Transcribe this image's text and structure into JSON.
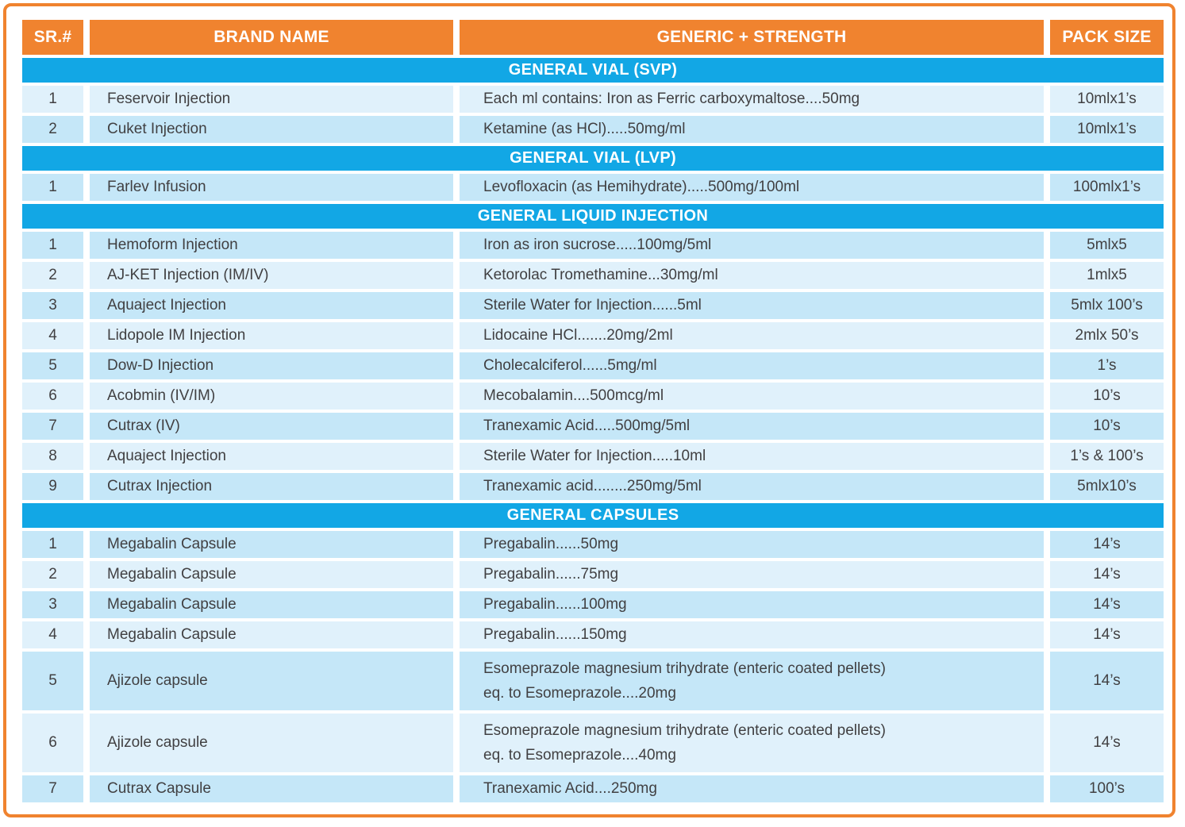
{
  "colors": {
    "accent_orange": "#F0832F",
    "accent_blue": "#12A7E5",
    "row_light": "#E0F1FB",
    "row_dark": "#C5E7F8",
    "cell_text": "#414042",
    "header_text": "#FFFFFF"
  },
  "table": {
    "columns": [
      {
        "label": "SR.#"
      },
      {
        "label": "BRAND NAME"
      },
      {
        "label": "GENERIC + STRENGTH"
      },
      {
        "label": "PACK SIZE"
      }
    ],
    "sections": [
      {
        "title": "GENERAL VIAL (SVP)",
        "rows": [
          {
            "sr": "1",
            "brand": "Feservoir Injection",
            "generic": "Each ml contains: Iron as Ferric carboxymaltose....50mg",
            "pack": "10mlx1’s"
          },
          {
            "sr": "2",
            "brand": "Cuket Injection",
            "generic": "Ketamine (as HCl).....50mg/ml",
            "pack": "10mlx1’s"
          }
        ]
      },
      {
        "title": "GENERAL VIAL (LVP)",
        "rows": [
          {
            "sr": "1",
            "brand": "Farlev Infusion",
            "generic": "Levofloxacin (as Hemihydrate).....500mg/100ml",
            "pack": "100mlx1’s"
          }
        ]
      },
      {
        "title": "GENERAL LIQUID INJECTION",
        "rows": [
          {
            "sr": "1",
            "brand": "Hemoform Injection",
            "generic": "Iron as iron sucrose.....100mg/5ml",
            "pack": "5mlx5"
          },
          {
            "sr": "2",
            "brand": "AJ-KET Injection (IM/IV)",
            "generic": "Ketorolac Tromethamine...30mg/ml",
            "pack": "1mlx5"
          },
          {
            "sr": "3",
            "brand": "Aquaject Injection",
            "generic": "Sterile Water for Injection......5ml",
            "pack": "5mlx 100’s"
          },
          {
            "sr": "4",
            "brand": "Lidopole IM Injection",
            "generic": "Lidocaine HCl.......20mg/2ml",
            "pack": "2mlx 50’s"
          },
          {
            "sr": "5",
            "brand": "Dow-D Injection",
            "generic": "Cholecalciferol......5mg/ml",
            "pack": "1’s"
          },
          {
            "sr": "6",
            "brand": "Acobmin (IV/IM)",
            "generic": "Mecobalamin....500mcg/ml",
            "pack": "10’s"
          },
          {
            "sr": "7",
            "brand": "Cutrax (IV)",
            "generic": "Tranexamic Acid.....500mg/5ml",
            "pack": "10’s"
          },
          {
            "sr": "8",
            "brand": "Aquaject Injection",
            "generic": "Sterile Water for Injection.....10ml",
            "pack": "1’s & 100’s"
          },
          {
            "sr": "9",
            "brand": "Cutrax Injection",
            "generic": "Tranexamic acid........250mg/5ml",
            "pack": "5mlx10’s"
          }
        ]
      },
      {
        "title": "GENERAL CAPSULES",
        "rows": [
          {
            "sr": "1",
            "brand": "Megabalin Capsule",
            "generic": "Pregabalin......50mg",
            "pack": "14’s"
          },
          {
            "sr": "2",
            "brand": "Megabalin Capsule",
            "generic": "Pregabalin......75mg",
            "pack": "14’s"
          },
          {
            "sr": "3",
            "brand": "Megabalin Capsule",
            "generic": "Pregabalin......100mg",
            "pack": "14’s"
          },
          {
            "sr": "4",
            "brand": "Megabalin Capsule",
            "generic": "Pregabalin......150mg",
            "pack": "14’s"
          },
          {
            "sr": "5",
            "brand": "Ajizole capsule",
            "generic": [
              "Esomeprazole magnesium trihydrate (enteric coated pellets)",
              "eq. to Esomeprazole....20mg"
            ],
            "pack": "14’s"
          },
          {
            "sr": "6",
            "brand": "Ajizole capsule",
            "generic": [
              "Esomeprazole magnesium trihydrate (enteric coated pellets)",
              "eq. to Esomeprazole....40mg"
            ],
            "pack": "14’s"
          },
          {
            "sr": "7",
            "brand": "Cutrax Capsule",
            "generic": "Tranexamic Acid....250mg",
            "pack": "100’s"
          }
        ]
      }
    ]
  }
}
